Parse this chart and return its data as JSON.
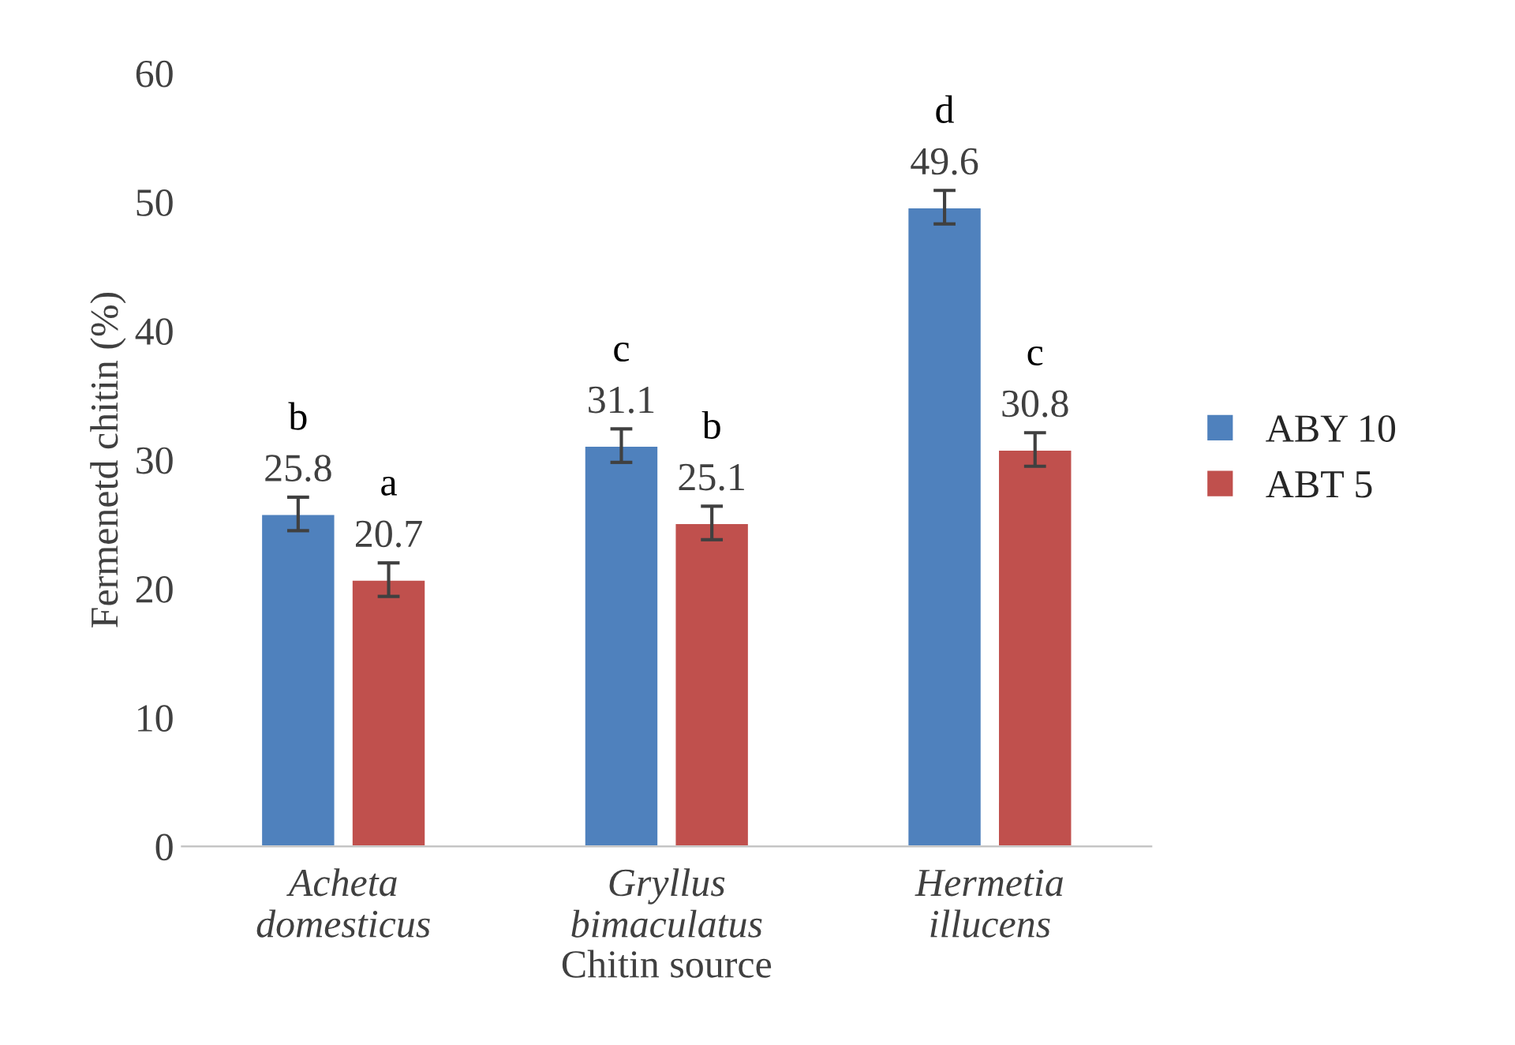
{
  "chart_data": {
    "type": "bar",
    "xlabel": "Chitin source",
    "ylabel": "Fermenetd chitin (%)",
    "categories": [
      "Acheta\ndomesticus",
      "Gryllus\nbimaculatus",
      "Hermetia\nillucens"
    ],
    "series": [
      {
        "name": "ABY 10",
        "color": "#4f81bd",
        "values": [
          25.8,
          31.1,
          49.6
        ],
        "errors": [
          1.3,
          1.3,
          1.3
        ]
      },
      {
        "name": "ABT 5",
        "color": "#c0504d",
        "values": [
          20.7,
          25.1,
          30.8
        ],
        "errors": [
          1.3,
          1.3,
          1.3
        ]
      }
    ],
    "ylim": [
      0,
      60
    ],
    "yticks": [
      0,
      10,
      20,
      30,
      40,
      50,
      60
    ],
    "data_labels": true,
    "grid": false,
    "legend": "right",
    "annotations": [
      "b",
      "c",
      "d",
      "a",
      "b",
      "c"
    ]
  }
}
